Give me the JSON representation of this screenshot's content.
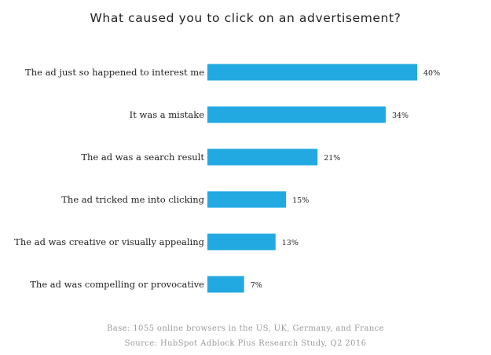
{
  "chart_data": {
    "type": "bar",
    "orientation": "horizontal",
    "title": "What caused you to click on an advertisement?",
    "categories": [
      "The ad just so happened to interest me",
      "It was a mistake",
      "The ad was a search result",
      "The ad tricked me into clicking",
      "The ad was creative or visually appealing",
      "The ad was compelling or provocative"
    ],
    "values": [
      40,
      34,
      21,
      15,
      13,
      7
    ],
    "value_labels": [
      "40%",
      "34%",
      "21%",
      "15%",
      "13%",
      "7%"
    ],
    "xlim": [
      0,
      40
    ],
    "grid": false,
    "legend": "none",
    "bar_color": "#22a9e1"
  },
  "footnotes": {
    "base": "Base: 1055 online browsers in the US, UK, Germany, and France",
    "source": "Source: HubSpot Adblock Plus Research Study, Q2 2016"
  }
}
